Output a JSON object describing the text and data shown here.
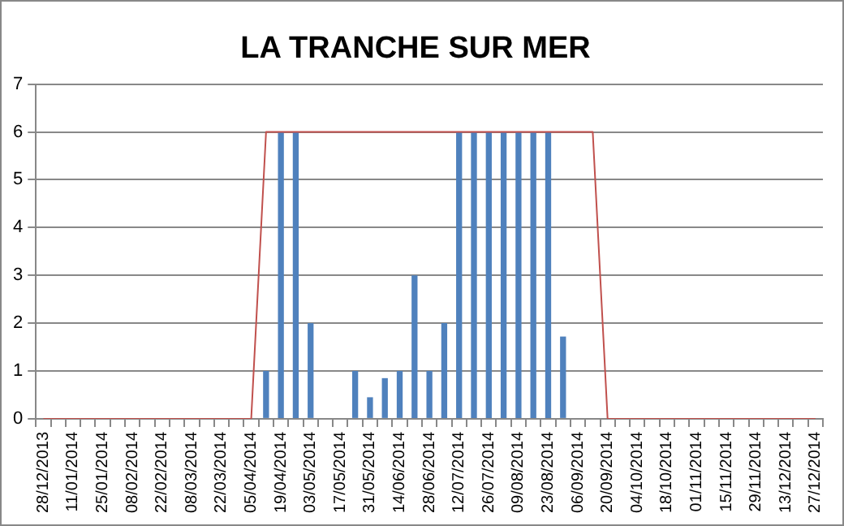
{
  "chart_data": {
    "type": "bar",
    "title": "LA TRANCHE SUR MER",
    "categories": [
      "28/12/2013",
      null,
      "11/01/2014",
      null,
      "25/01/2014",
      null,
      "08/02/2014",
      null,
      "22/02/2014",
      null,
      "08/03/2014",
      null,
      "22/03/2014",
      null,
      "05/04/2014",
      null,
      "19/04/2014",
      null,
      "03/05/2014",
      null,
      "17/05/2014",
      null,
      "31/05/2014",
      null,
      "14/06/2014",
      null,
      "28/06/2014",
      null,
      "12/07/2014",
      null,
      "26/07/2014",
      null,
      "09/08/2014",
      null,
      "23/08/2014",
      null,
      "06/09/2014",
      null,
      "20/09/2014",
      null,
      "04/10/2014",
      null,
      "18/10/2014",
      null,
      "01/11/2014",
      null,
      "15/11/2014",
      null,
      "29/11/2014",
      null,
      "13/12/2014",
      null,
      "27/12/2014"
    ],
    "series": [
      {
        "color": "#4f81bd",
        "values": [
          0,
          0,
          0,
          0,
          0,
          0,
          0,
          0,
          0,
          0,
          0,
          0,
          0,
          0,
          0,
          1,
          6,
          6,
          2,
          0,
          0,
          1,
          0.45,
          0.85,
          1,
          3,
          1,
          2,
          6,
          6,
          6,
          6,
          6,
          6,
          6,
          1.72,
          0,
          0,
          0,
          0,
          0,
          0,
          0,
          0,
          0,
          0,
          0,
          0,
          0,
          0,
          0,
          0,
          0
        ]
      },
      {
        "type": "line",
        "color": "#c0504d",
        "values": [
          0,
          0,
          0,
          0,
          0,
          0,
          0,
          0,
          0,
          0,
          0,
          0,
          0,
          0,
          0,
          6,
          6,
          6,
          6,
          6,
          6,
          6,
          6,
          6,
          6,
          6,
          6,
          6,
          6,
          6,
          6,
          6,
          6,
          6,
          6,
          6,
          6,
          6,
          0,
          0,
          0,
          0,
          0,
          0,
          0,
          0,
          0,
          0,
          0,
          0,
          0,
          0,
          0
        ]
      }
    ],
    "ylim": [
      0,
      7
    ],
    "yticks": [
      0,
      1,
      2,
      3,
      4,
      5,
      6,
      7
    ],
    "grid": "y",
    "legend": false
  }
}
